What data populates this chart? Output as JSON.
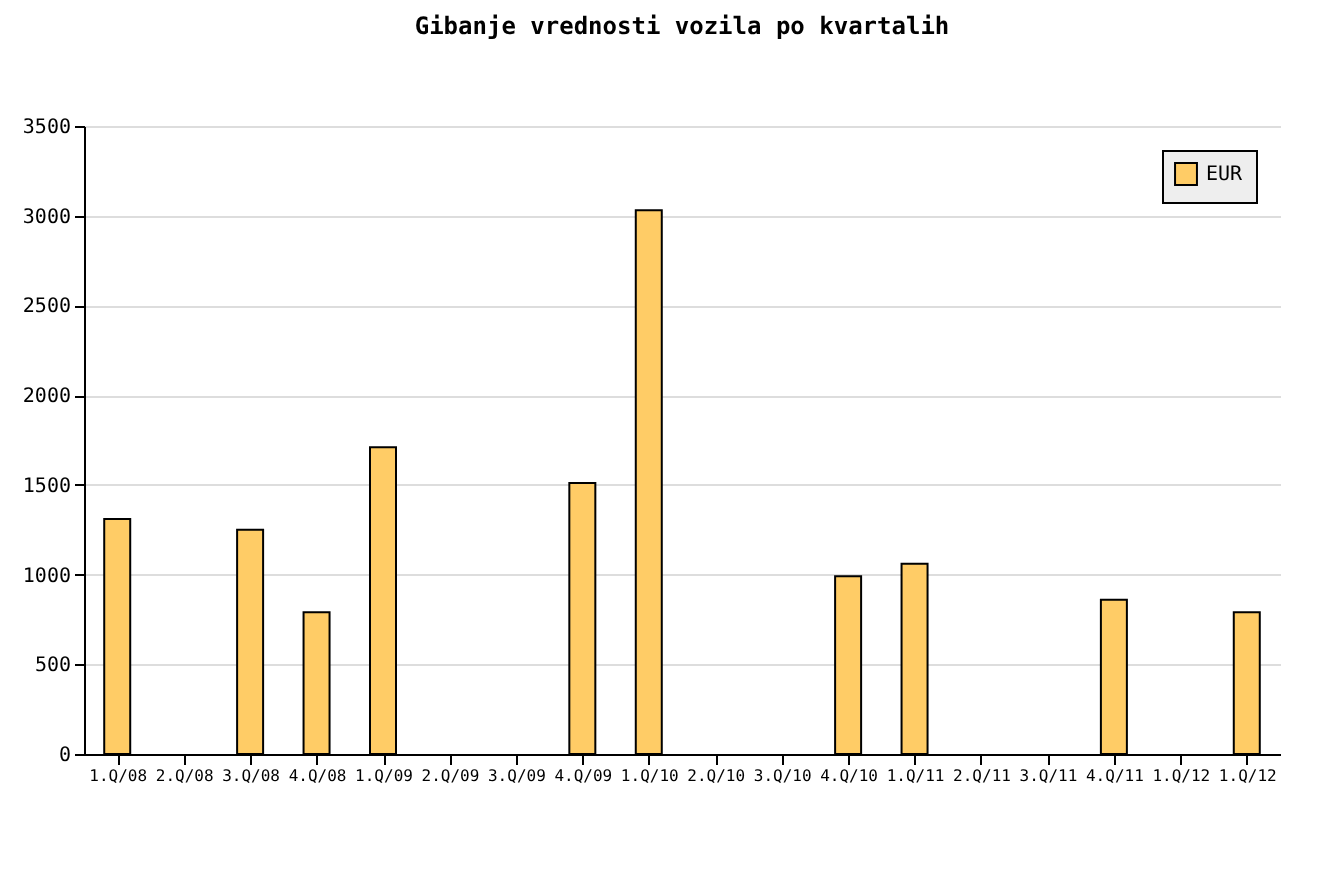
{
  "chart_data": {
    "type": "bar",
    "title": "Gibanje vrednosti vozila po kvartalih",
    "categories": [
      "1.Q/08",
      "2.Q/08",
      "3.Q/08",
      "4.Q/08",
      "1.Q/09",
      "2.Q/09",
      "3.Q/09",
      "4.Q/09",
      "1.Q/10",
      "2.Q/10",
      "3.Q/10",
      "4.Q/10",
      "1.Q/11",
      "2.Q/11",
      "3.Q/11",
      "4.Q/11",
      "1.Q/12",
      "1.Q/12"
    ],
    "series": [
      {
        "name": "EUR",
        "color": "#ffcc66",
        "values": [
          1310,
          null,
          1250,
          790,
          1710,
          null,
          null,
          1510,
          3030,
          null,
          null,
          990,
          1060,
          null,
          null,
          860,
          null,
          790
        ]
      }
    ],
    "ylim": [
      0,
      3500
    ],
    "yticks": [
      0,
      500,
      1000,
      1500,
      2000,
      2500,
      3000,
      3500
    ],
    "grid": "y",
    "legend": "top right"
  }
}
